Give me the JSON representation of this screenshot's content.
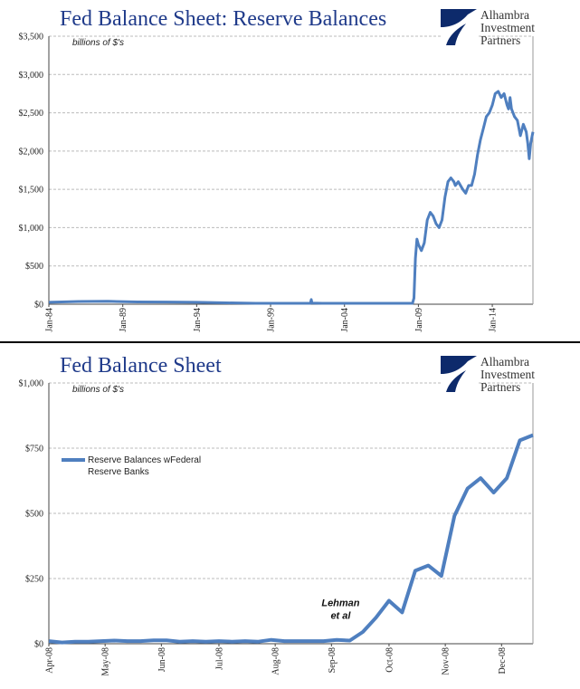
{
  "logo": {
    "line1": "Alhambra",
    "line2": "Investment",
    "line3": "Partners"
  },
  "colors": {
    "title": "#1f3a8a",
    "series": "#4f7fbf",
    "grid": "#bbbbbb",
    "logo_navy": "#0d2a6b"
  },
  "chart_data": [
    {
      "type": "line",
      "title": "Fed Balance Sheet: Reserve Balances",
      "units_label": "billions of $'s",
      "xlabel": "",
      "ylabel": "",
      "ylim": [
        0,
        3500
      ],
      "yticks": [
        0,
        500,
        1000,
        1500,
        2000,
        2500,
        3000,
        3500
      ],
      "ytick_labels": [
        "$0",
        "$500",
        "$1,000",
        "$1,500",
        "$2,000",
        "$2,500",
        "$3,000",
        "$3,500"
      ],
      "xlim": [
        1984.0,
        2016.75
      ],
      "xticks": [
        1984,
        1989,
        1994,
        1999,
        2004,
        2009,
        2014
      ],
      "xtick_labels": [
        "Jan-84",
        "Jan-89",
        "Jan-94",
        "Jan-99",
        "Jan-04",
        "Jan-09",
        "Jan-14"
      ],
      "grid": true,
      "series": [
        {
          "x": [
            1984.0,
            1986.0,
            1988.0,
            1990.0,
            1992.0,
            1994.0,
            1996.0,
            1998.0,
            2000.0,
            2001.7,
            2001.75,
            2001.8,
            2002.5,
            2005.0,
            2007.0,
            2008.6,
            2008.7,
            2008.8,
            2008.9,
            2009.0,
            2009.2,
            2009.4,
            2009.6,
            2009.8,
            2010.0,
            2010.2,
            2010.4,
            2010.6,
            2010.8,
            2011.0,
            2011.2,
            2011.4,
            2011.5,
            2011.7,
            2012.0,
            2012.2,
            2012.4,
            2012.6,
            2012.8,
            2013.0,
            2013.2,
            2013.4,
            2013.6,
            2013.8,
            2014.0,
            2014.2,
            2014.4,
            2014.6,
            2014.8,
            2015.0,
            2015.1,
            2015.2,
            2015.3,
            2015.5,
            2015.7,
            2015.9,
            2016.1,
            2016.3,
            2016.4,
            2016.5,
            2016.6,
            2016.75
          ],
          "y": [
            25,
            35,
            38,
            30,
            28,
            25,
            18,
            12,
            12,
            12,
            60,
            15,
            12,
            12,
            12,
            12,
            80,
            600,
            850,
            780,
            700,
            800,
            1100,
            1200,
            1150,
            1050,
            1000,
            1100,
            1400,
            1600,
            1650,
            1600,
            1550,
            1600,
            1500,
            1450,
            1550,
            1550,
            1700,
            1950,
            2150,
            2300,
            2450,
            2500,
            2600,
            2750,
            2780,
            2700,
            2750,
            2600,
            2550,
            2700,
            2550,
            2450,
            2400,
            2200,
            2350,
            2250,
            2100,
            1900,
            2100,
            2250
          ]
        }
      ]
    },
    {
      "type": "line",
      "title": "Fed Balance Sheet",
      "units_label": "billions of $'s",
      "xlabel": "",
      "ylabel": "",
      "ylim": [
        0,
        1000
      ],
      "yticks": [
        0,
        250,
        500,
        750,
        1000
      ],
      "ytick_labels": [
        "$0",
        "$250",
        "$500",
        "$750",
        "$1,000"
      ],
      "xlim": [
        0,
        37
      ],
      "xticks": [
        0,
        4.3,
        8.6,
        13,
        17.3,
        21.6,
        26,
        30.3,
        34.6
      ],
      "xtick_labels": [
        "Apr-08",
        "May-08",
        "Jun-08",
        "Jul-08",
        "Aug-08",
        "Sep-08",
        "Oct-08",
        "Nov-08",
        "Dec-08"
      ],
      "grid": true,
      "legend_position": "left",
      "annotation": {
        "text_line1": "Lehman",
        "text_line2": "et al",
        "x": 22.3,
        "y": 95
      },
      "series": [
        {
          "name": "Reserve Balances wFederal Reserve Banks",
          "x": [
            0,
            1,
            2,
            3,
            4,
            5,
            6,
            7,
            8,
            9,
            10,
            11,
            12,
            13,
            14,
            15,
            16,
            17,
            18,
            19,
            20,
            21,
            22,
            23,
            24,
            25,
            26,
            27,
            28,
            29,
            30,
            31,
            32,
            33,
            34,
            35,
            36,
            37
          ],
          "y": [
            10,
            5,
            8,
            8,
            10,
            12,
            10,
            10,
            13,
            13,
            8,
            10,
            8,
            10,
            8,
            10,
            8,
            15,
            10,
            10,
            10,
            10,
            15,
            12,
            45,
            100,
            165,
            120,
            280,
            300,
            260,
            490,
            595,
            635,
            580,
            635,
            780,
            800
          ]
        }
      ]
    }
  ]
}
